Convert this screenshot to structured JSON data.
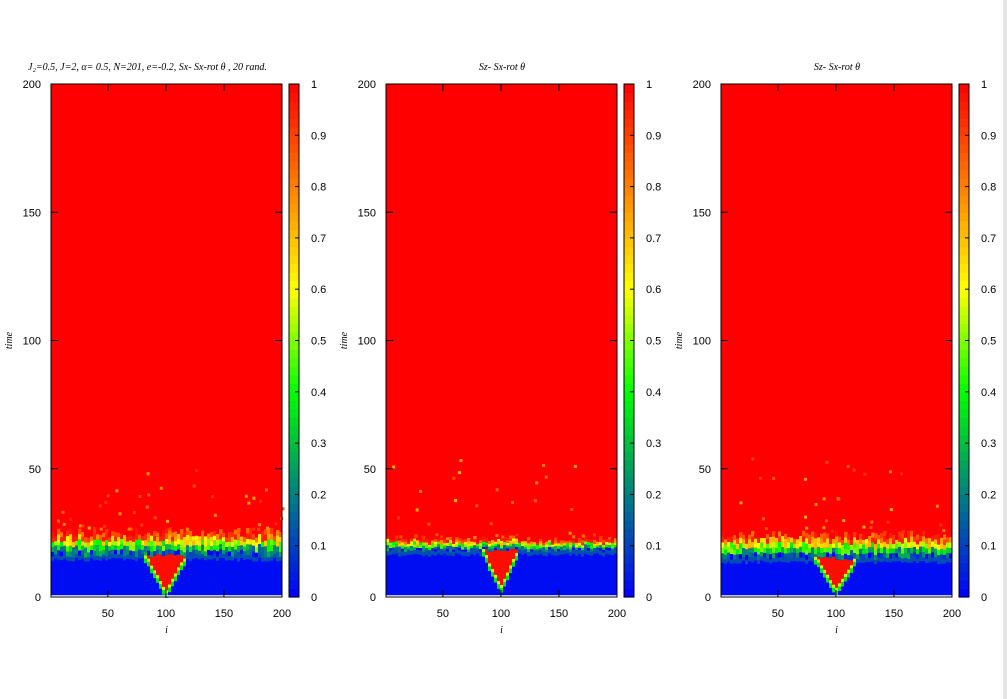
{
  "chart_data": [
    {
      "type": "heatmap",
      "title": "J₂=0.5,  J=2, α= 0.5,   N=201,  e=-0.2, Sx- Sx-rot θ , 20 rand.",
      "xlabel": "i",
      "ylabel": "time",
      "xlim": [
        1,
        200
      ],
      "ylim": [
        0,
        200
      ],
      "xticks": [
        "50",
        "100",
        "150",
        "200"
      ],
      "yticks": [
        "0",
        "50",
        "100",
        "150",
        "200"
      ],
      "colorbar": {
        "range": [
          0,
          1
        ],
        "ticks": [
          "0",
          "0.1",
          "0.2",
          "0.3",
          "0.4",
          "0.5",
          "0.6",
          "0.7",
          "0.8",
          "0.9",
          "1"
        ]
      },
      "colormap": [
        "#0000ff",
        "#008080",
        "#00ff00",
        "#ffff00",
        "#ff8000",
        "#ff0000"
      ],
      "front": {
        "center_i": 100,
        "width_i": 18,
        "depth_time": 20,
        "start_time": 1,
        "blue_top_time": 16,
        "red_from_time": 26,
        "scatter": "high"
      }
    },
    {
      "type": "heatmap",
      "title": "Sz- Sx-rot θ",
      "xlabel": "i",
      "ylabel": "time",
      "xlim": [
        1,
        200
      ],
      "ylim": [
        0,
        200
      ],
      "xticks": [
        "50",
        "100",
        "150",
        "200"
      ],
      "yticks": [
        "0",
        "50",
        "100",
        "150",
        "200"
      ],
      "colorbar": {
        "range": [
          0,
          1
        ],
        "ticks": [
          "0",
          "0.1",
          "0.2",
          "0.3",
          "0.4",
          "0.5",
          "0.6",
          "0.7",
          "0.8",
          "0.9",
          "1"
        ]
      },
      "colormap": [
        "#0000ff",
        "#008080",
        "#00ff00",
        "#ffff00",
        "#ff8000",
        "#ff0000"
      ],
      "front": {
        "center_i": 100,
        "width_i": 16,
        "depth_time": 16,
        "start_time": 3,
        "blue_top_time": 18,
        "red_from_time": 23,
        "scatter": "medium"
      }
    },
    {
      "type": "heatmap",
      "title": "Sz- Sx-rot θ",
      "xlabel": "i",
      "ylabel": "time",
      "xlim": [
        1,
        200
      ],
      "ylim": [
        0,
        200
      ],
      "xticks": [
        "50",
        "100",
        "150",
        "200"
      ],
      "yticks": [
        "0",
        "50",
        "100",
        "150",
        "200"
      ],
      "colorbar": {
        "range": [
          0,
          1
        ],
        "ticks": [
          "0",
          "0.1",
          "0.2",
          "0.3",
          "0.4",
          "0.5",
          "0.6",
          "0.7",
          "0.8",
          "0.9",
          "1"
        ]
      },
      "colormap": [
        "#0000ff",
        "#008080",
        "#00ff00",
        "#ffff00",
        "#ff8000",
        "#ff0000"
      ],
      "front": {
        "center_i": 100,
        "width_i": 18,
        "depth_time": 20,
        "start_time": 2,
        "blue_top_time": 15,
        "red_from_time": 25,
        "scatter": "medium"
      }
    }
  ]
}
